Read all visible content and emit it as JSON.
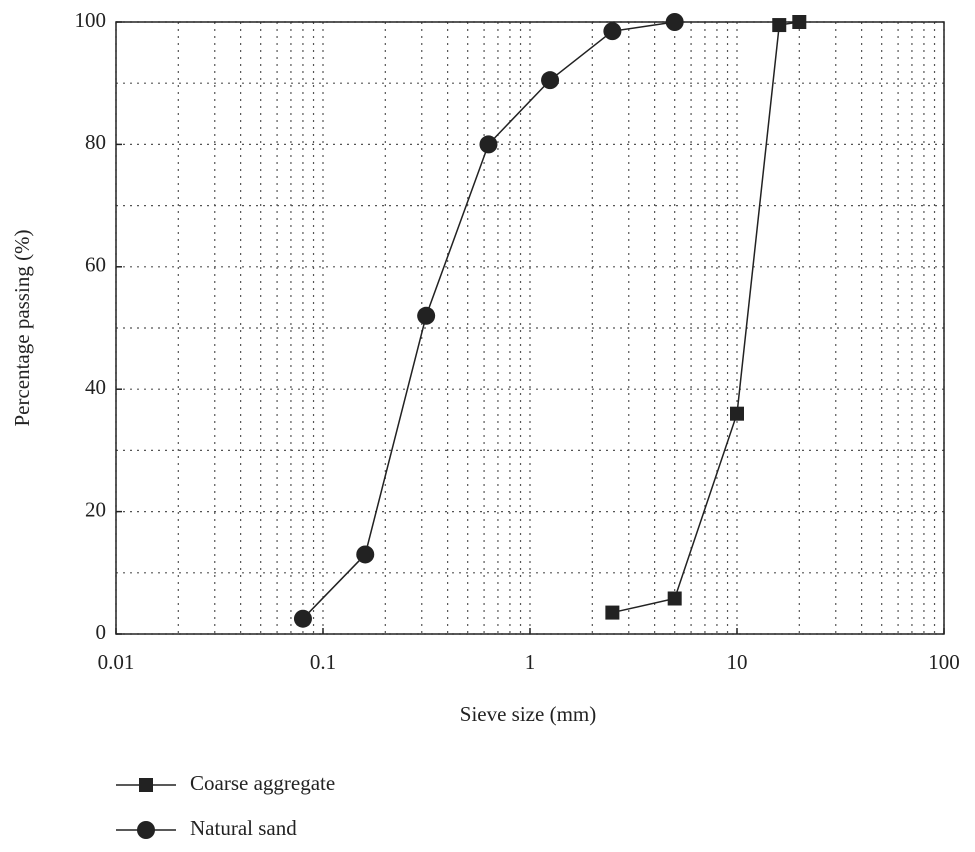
{
  "chart_data": {
    "type": "line",
    "x_label": "Sieve size (mm)",
    "y_label": "Percentage passing (%)",
    "x_scale": "log",
    "xlim": [
      0.01,
      100
    ],
    "xticks": [
      0.01,
      0.1,
      1,
      10,
      100
    ],
    "ylim": [
      0,
      100
    ],
    "yticks": [
      0,
      20,
      40,
      60,
      80,
      100
    ],
    "grid": true,
    "legend_position": "bottom",
    "series": [
      {
        "name": "Coarse aggregate",
        "color": "#222222",
        "marker": "square",
        "x": [
          2.5,
          5,
          10,
          16,
          20
        ],
        "values": [
          3.5,
          5.8,
          36,
          99.5,
          100
        ]
      },
      {
        "name": "Natural sand",
        "color": "#222222",
        "marker": "circle",
        "x": [
          0.08,
          0.16,
          0.315,
          0.63,
          1.25,
          2.5,
          5
        ],
        "values": [
          2.5,
          13,
          52,
          80,
          90.5,
          98.5,
          100
        ]
      }
    ]
  }
}
